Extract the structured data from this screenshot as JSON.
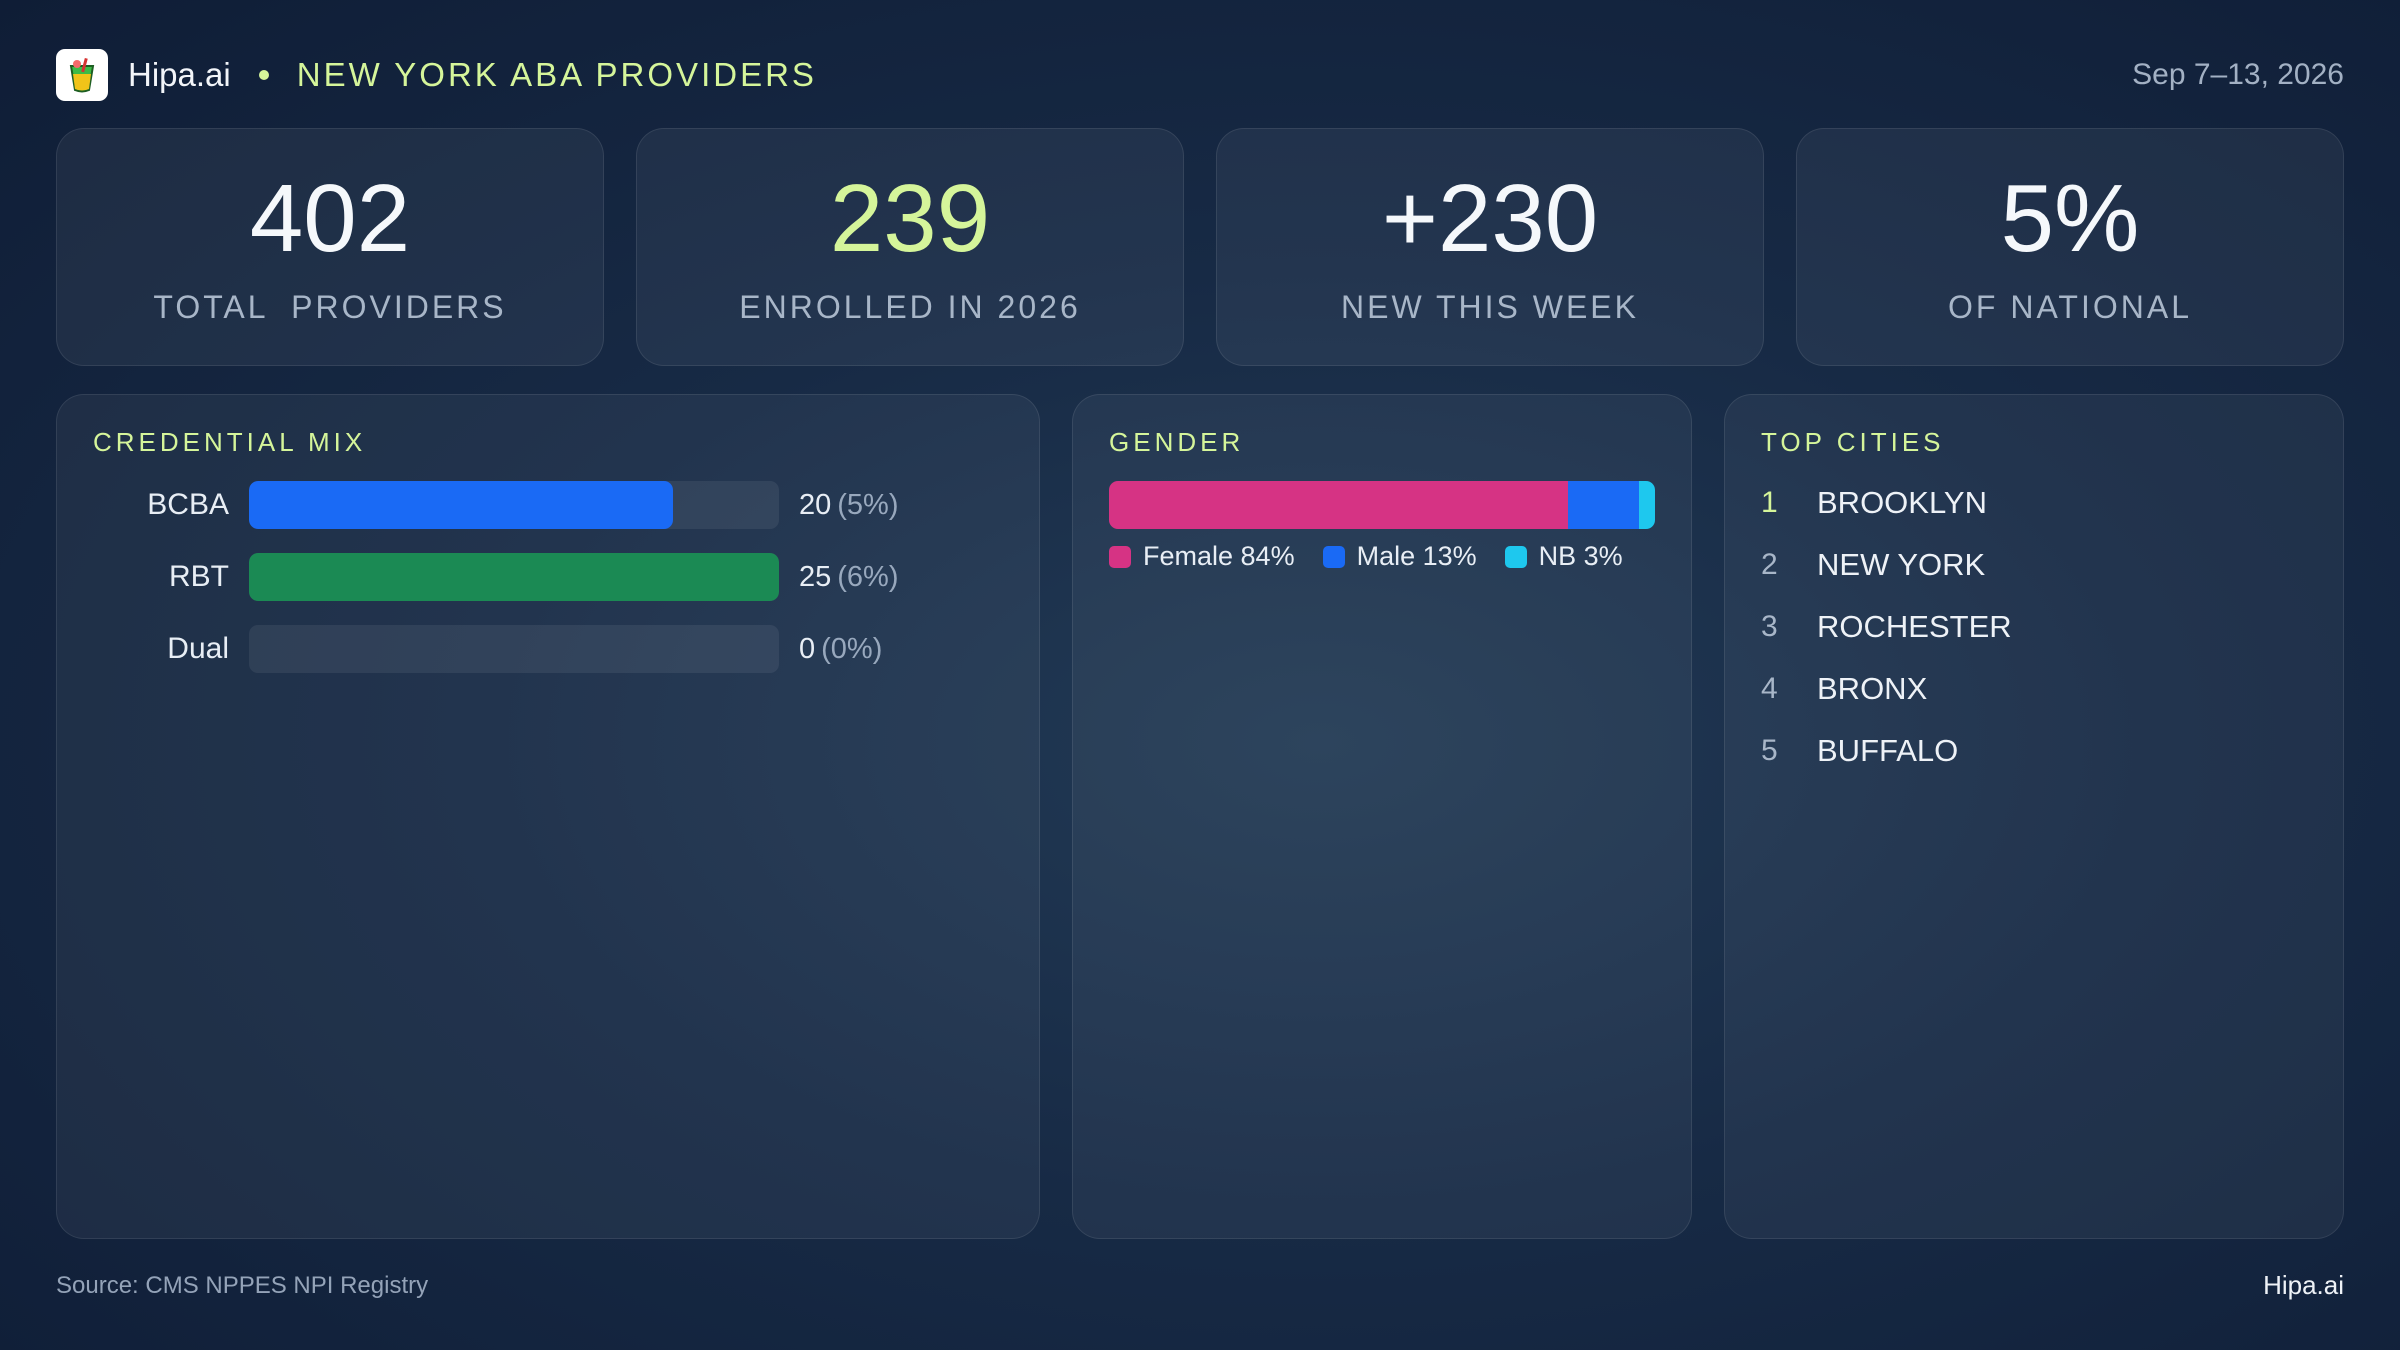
{
  "header": {
    "brand": "Hipa.ai",
    "title": "NEW YORK ABA PROVIDERS",
    "date_range": "Sep 7–13, 2026",
    "logo_icon": "cocktail-glass-icon"
  },
  "kpis": [
    {
      "value": "402",
      "label": "TOTAL  PROVIDERS"
    },
    {
      "value": "239",
      "label": "ENROLLED IN 2026"
    },
    {
      "value": "+230",
      "label": "NEW THIS WEEK"
    },
    {
      "value": "5%",
      "label": "OF NATIONAL"
    }
  ],
  "credential_mix": {
    "title": "CREDENTIAL MIX",
    "rows": [
      {
        "label": "BCBA",
        "count": "20",
        "pct_text": "(5%)",
        "fill_fraction": 0.8,
        "color": "#1a6af5"
      },
      {
        "label": "RBT",
        "count": "25",
        "pct_text": "(6%)",
        "fill_fraction": 1.0,
        "color": "#1b8a54"
      },
      {
        "label": "Dual",
        "count": "0",
        "pct_text": "(0%)",
        "fill_fraction": 0.0,
        "color": "#1a6af5"
      }
    ]
  },
  "gender": {
    "title": "GENDER",
    "segments": [
      {
        "label": "Female 84%",
        "percent": 84,
        "color": "#d63384"
      },
      {
        "label": "Male 13%",
        "percent": 13,
        "color": "#1a6af5"
      },
      {
        "label": "NB 3%",
        "percent": 3,
        "color": "#1ec8ee"
      }
    ]
  },
  "top_cities": {
    "title": "TOP CITIES",
    "items": [
      {
        "rank": "1",
        "name": "BROOKLYN"
      },
      {
        "rank": "2",
        "name": "NEW YORK"
      },
      {
        "rank": "3",
        "name": "ROCHESTER"
      },
      {
        "rank": "4",
        "name": "BRONX"
      },
      {
        "rank": "5",
        "name": "BUFFALO"
      }
    ]
  },
  "footer": {
    "source": "Source: CMS NPPES NPI Registry",
    "brand": "Hipa.ai"
  },
  "colors": {
    "accent": "#d5f59a",
    "background": "#14253f"
  }
}
